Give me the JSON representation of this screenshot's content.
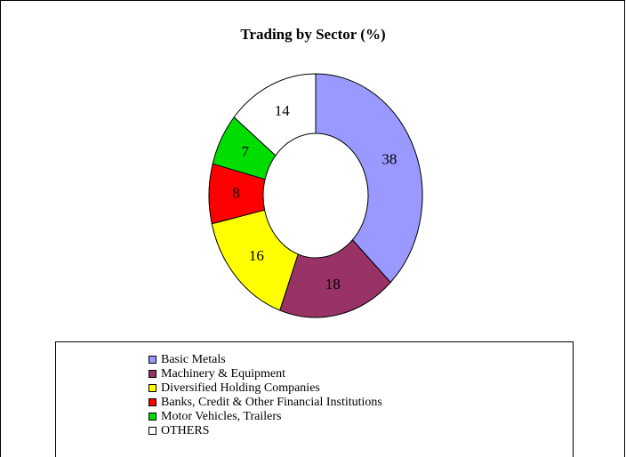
{
  "chart_data": {
    "type": "donut",
    "title": "Trading by Sector (%)",
    "categories": [
      "Basic Metals",
      "Machinery & Equipment",
      "Diversified Holding Companies",
      "Banks, Credit & Other Financial Institutions",
      "Motor Vehicles, Trailers",
      "OTHERS"
    ],
    "values": [
      38,
      18,
      16,
      8,
      7,
      14
    ],
    "colors": [
      "#9999ff",
      "#993366",
      "#ffff00",
      "#ff0000",
      "#00dd00",
      "#ffffff"
    ]
  }
}
